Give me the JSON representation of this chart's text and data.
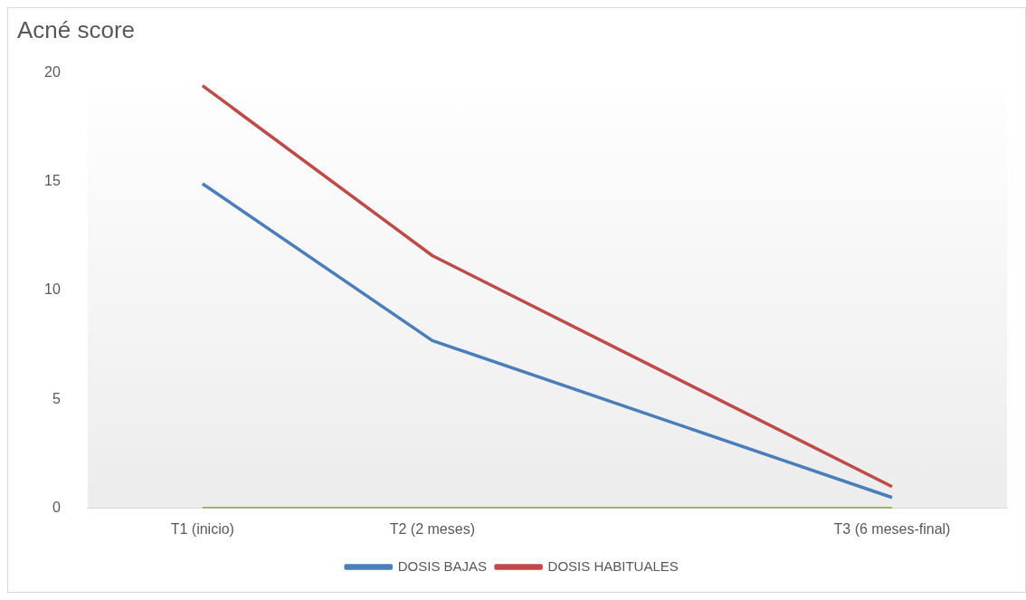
{
  "chart_data": {
    "type": "line",
    "title": "Acné score",
    "categories": [
      "T1 (inicio)",
      "T2 (2 meses)",
      null,
      "T3 (6 meses-final)"
    ],
    "series": [
      {
        "name": "DOSIS BAJAS",
        "color": "#4a7ebb",
        "values": [
          14.9,
          7.7,
          4.1,
          0.5
        ]
      },
      {
        "name": "DOSIS HABITUALES",
        "color": "#be4b48",
        "values": [
          19.4,
          11.6,
          6.3,
          1.0
        ]
      },
      {
        "color": "#8db550",
        "values": [
          0,
          0,
          0,
          0
        ]
      }
    ],
    "ylim": [
      0,
      20
    ],
    "yticks": [
      0,
      5,
      10,
      15,
      20
    ],
    "grid": false,
    "legend": "bottom",
    "marker": "none",
    "line_style": "solid"
  }
}
